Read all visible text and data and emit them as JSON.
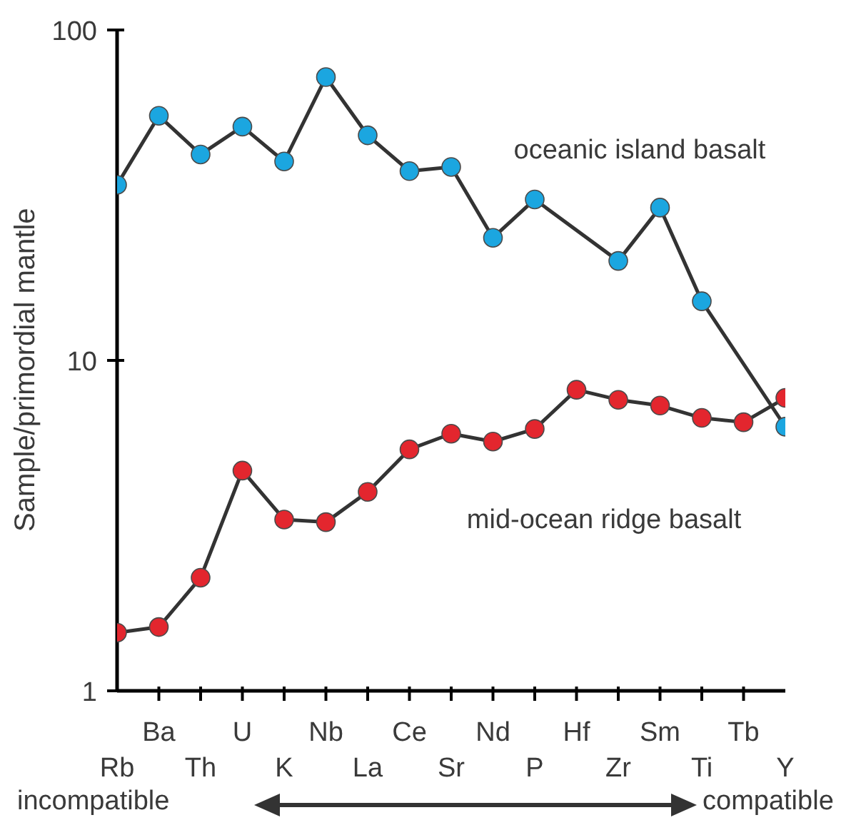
{
  "chart_data": {
    "type": "line",
    "ylabel": "Sample/primordial mantle",
    "log": true,
    "ylim": [
      1,
      100
    ],
    "yticks": [
      1,
      10,
      100
    ],
    "marker": "circle",
    "line_style": "solid",
    "categories": [
      "Rb",
      "Ba",
      "Th",
      "U",
      "K",
      "Nb",
      "La",
      "Ce",
      "Sr",
      "Nd",
      "P",
      "Hf",
      "Zr",
      "Sm",
      "Ti",
      "Tb",
      "Y"
    ],
    "series": [
      {
        "name": "oceanic island basalt",
        "color": "#1ba6e0",
        "values": [
          34,
          55,
          42,
          51,
          40,
          72,
          48,
          37.4,
          38.5,
          23.5,
          30.7,
          null,
          20,
          29,
          15.1,
          null,
          6.3
        ]
      },
      {
        "name": "mid-ocean ridge basalt",
        "color": "#e3262e",
        "values": [
          1.5,
          1.56,
          2.2,
          4.64,
          3.3,
          3.24,
          4.0,
          5.38,
          6.0,
          5.68,
          6.2,
          8.15,
          7.6,
          7.3,
          6.7,
          6.5,
          7.7
        ]
      }
    ],
    "annotations": [
      "incompatible",
      "compatible"
    ]
  }
}
